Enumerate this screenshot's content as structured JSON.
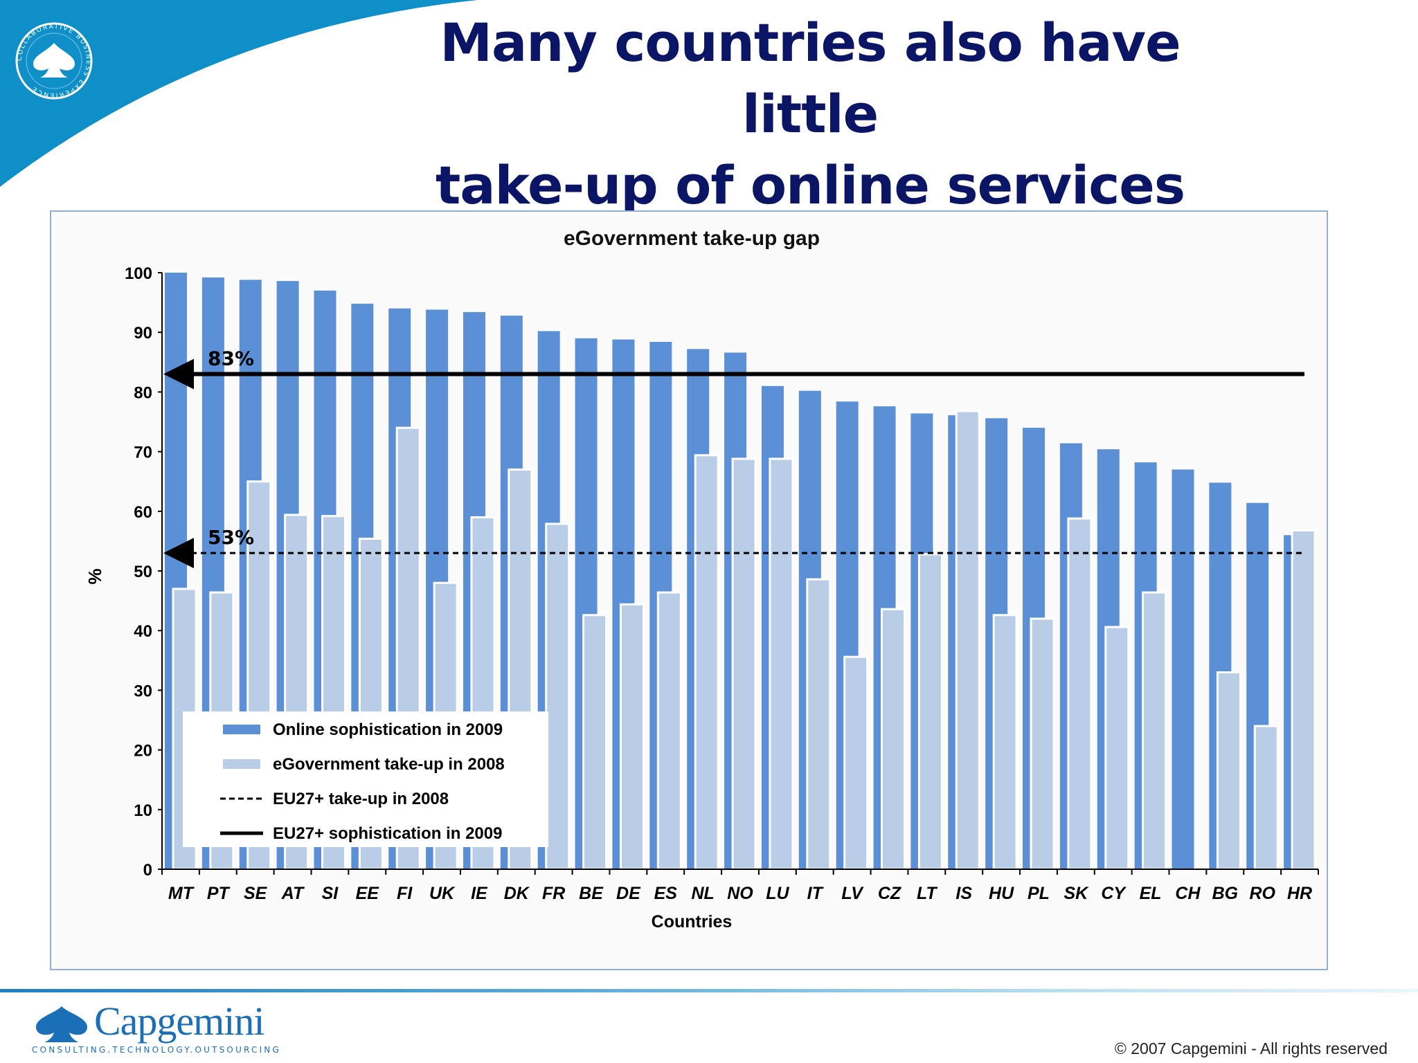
{
  "header": {
    "title_line1": "Many countries also have little",
    "title_line2": "take-up of online services",
    "badge_text": "COLLABORATIVE BUSINESS EXPERIENCE"
  },
  "colors": {
    "title": "#0b1566",
    "sophistication_bar": "#5b8fd6",
    "takeup_bar": "#b9cde6",
    "brand": "#1a6fb8",
    "swoosh": "#0f8fc8"
  },
  "chart_data": {
    "type": "bar",
    "title": "eGovernment take-up gap",
    "xlabel": "Countries",
    "ylabel": "%",
    "ylim": [
      0,
      100
    ],
    "yticks": [
      0,
      10,
      20,
      30,
      40,
      50,
      60,
      70,
      80,
      90,
      100
    ],
    "categories": [
      "MT",
      "PT",
      "SE",
      "AT",
      "SI",
      "EE",
      "FI",
      "UK",
      "IE",
      "DK",
      "FR",
      "BE",
      "DE",
      "ES",
      "NL",
      "NO",
      "LU",
      "IT",
      "LV",
      "CZ",
      "LT",
      "IS",
      "HU",
      "PL",
      "SK",
      "CY",
      "EL",
      "CH",
      "BG",
      "RO",
      "HR"
    ],
    "series": [
      {
        "name": "Online sophistication in 2009",
        "values": [
          100,
          99.2,
          98.8,
          98.6,
          97,
          94.8,
          94,
          93.8,
          93.4,
          92.8,
          90.2,
          89,
          88.8,
          88.4,
          87.2,
          86.6,
          81,
          80.2,
          78.4,
          77.6,
          76.4,
          76.1,
          75.6,
          74,
          71.4,
          70.4,
          68.2,
          67,
          64.8,
          61.4,
          56
        ],
        "style": "bar"
      },
      {
        "name": "eGovernment take-up in 2008",
        "values": [
          47,
          46.4,
          65,
          59.4,
          59.2,
          55.4,
          74,
          48,
          59,
          67,
          57.9,
          42.6,
          44.4,
          46.4,
          69.4,
          68.8,
          68.8,
          48.6,
          35.6,
          43.6,
          52.8,
          76.8,
          42.6,
          42,
          58.8,
          40.6,
          46.4,
          0,
          33,
          24,
          56.8
        ],
        "style": "bar"
      },
      {
        "name": "EU27+ take-up in 2008",
        "value": 53,
        "style": "dashed line"
      },
      {
        "name": "EU27+ sophistication in 2009",
        "value": 83,
        "style": "solid line"
      }
    ],
    "annotations": [
      {
        "text": "83%",
        "y": 83
      },
      {
        "text": "53%",
        "y": 53
      }
    ],
    "legend_position": "bottom-left",
    "grid": false
  },
  "footer": {
    "brand": "Capgemini",
    "tagline": "CONSULTING.TECHNOLOGY.OUTSOURCING",
    "copyright": "© 2007 Capgemini - All rights reserved"
  }
}
